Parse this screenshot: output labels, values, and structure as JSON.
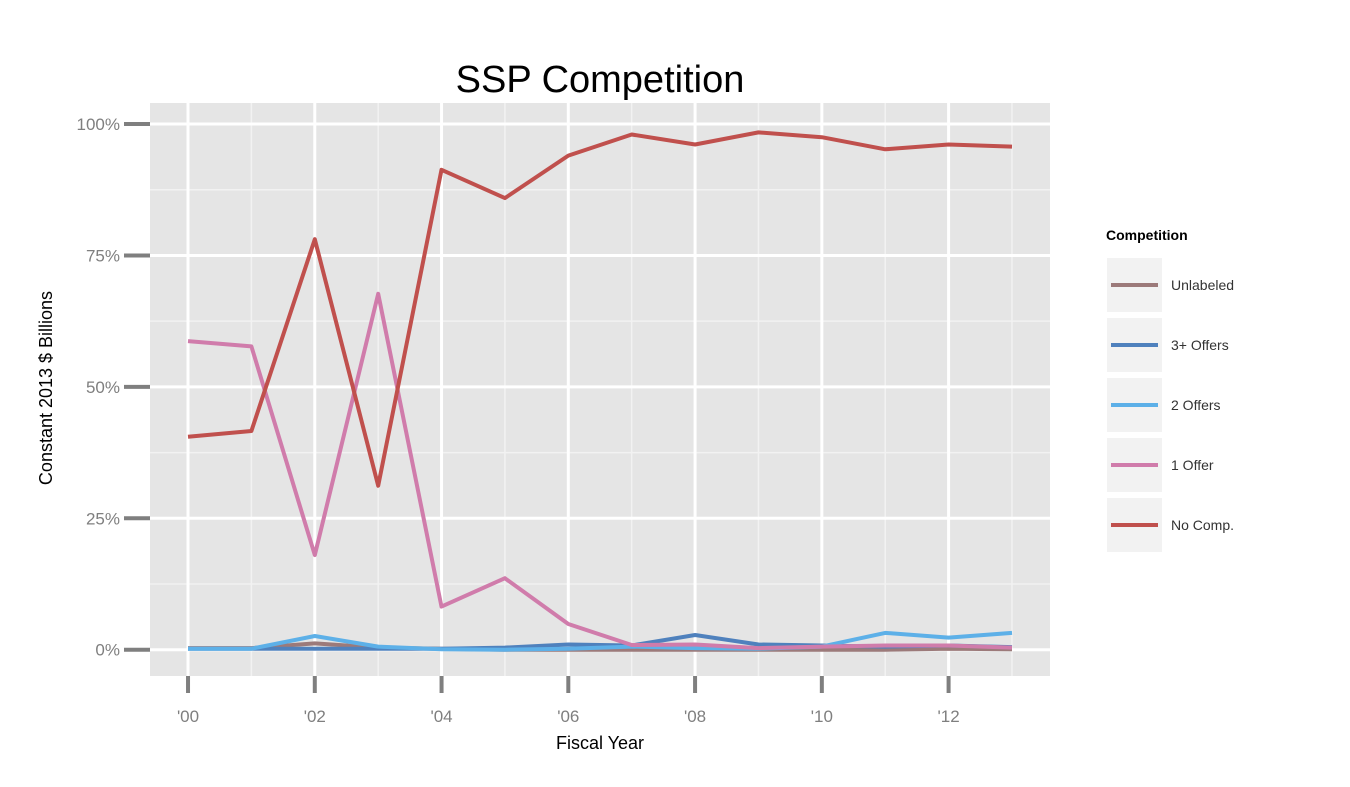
{
  "chart_data": {
    "type": "line",
    "title": "SSP Competition",
    "xlabel": "Fiscal Year",
    "ylabel": "Constant 2013 $ Billions",
    "x": [
      2000,
      2001,
      2002,
      2003,
      2004,
      2005,
      2006,
      2007,
      2008,
      2009,
      2010,
      2011,
      2012,
      2013
    ],
    "xlim": [
      1999.4,
      2013.6
    ],
    "ylim": [
      -0.05,
      1.04
    ],
    "x_ticks": [
      2000,
      2002,
      2004,
      2006,
      2008,
      2010,
      2012
    ],
    "x_tick_labels": [
      "'00",
      "'02",
      "'04",
      "'06",
      "'08",
      "'10",
      "'12"
    ],
    "y_ticks": [
      0,
      0.25,
      0.5,
      0.75,
      1.0
    ],
    "y_tick_labels": [
      "0%",
      "25%",
      "50%",
      "75%",
      "100%"
    ],
    "grid": true,
    "legend": {
      "title": "Competition",
      "position": "right"
    },
    "series": [
      {
        "name": "Unlabeled",
        "color": "#9C7A7A",
        "values": [
          0.003,
          0.003,
          0.012,
          0.004,
          0.002,
          0.0,
          0.0,
          0.0,
          0.0,
          0.0,
          0.0,
          0.0,
          0.002,
          0.001
        ]
      },
      {
        "name": "3+ Offers",
        "color": "#4F81BD",
        "values": [
          0.002,
          0.002,
          0.002,
          0.002,
          0.002,
          0.004,
          0.01,
          0.008,
          0.028,
          0.01,
          0.008,
          0.006,
          0.008,
          0.005
        ]
      },
      {
        "name": "2 Offers",
        "color": "#5DB0E8",
        "values": [
          0.002,
          0.002,
          0.026,
          0.006,
          0.001,
          0.0,
          0.002,
          0.006,
          0.003,
          0.002,
          0.006,
          0.032,
          0.023,
          0.032
        ]
      },
      {
        "name": "1 Offer",
        "color": "#D07CAB",
        "values": [
          0.587,
          0.577,
          0.18,
          0.677,
          0.082,
          0.136,
          0.049,
          0.009,
          0.01,
          0.003,
          0.006,
          0.008,
          0.008,
          0.004
        ]
      },
      {
        "name": "No Comp.",
        "color": "#C0504D",
        "values": [
          0.405,
          0.416,
          0.781,
          0.312,
          0.913,
          0.859,
          0.94,
          0.98,
          0.961,
          0.984,
          0.975,
          0.952,
          0.961,
          0.957
        ]
      }
    ]
  }
}
